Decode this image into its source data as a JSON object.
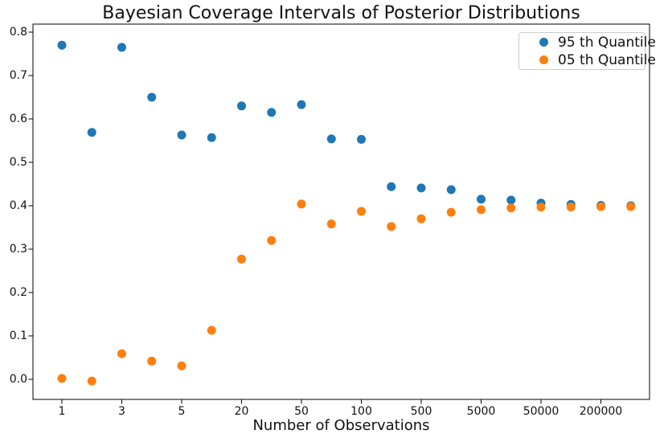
{
  "chart_data": {
    "type": "scatter",
    "title": "Bayesian Coverage Intervals of Posterior Distributions",
    "xlabel": "Number of Observations",
    "ylabel": "",
    "grid": false,
    "legend_position": "upper right",
    "n_points": 20,
    "x_tick_labels": [
      "1",
      "3",
      "5",
      "20",
      "50",
      "100",
      "500",
      "5000",
      "50000",
      "200000"
    ],
    "x_tick_point_indices": [
      0,
      2,
      4,
      6,
      8,
      10,
      12,
      14,
      16,
      18
    ],
    "y_tick_labels": [
      "0.0",
      "0.1",
      "0.2",
      "0.3",
      "0.4",
      "0.5",
      "0.6",
      "0.7",
      "0.8"
    ],
    "ylim": [
      -0.046,
      0.818
    ],
    "series": [
      {
        "name": "95 th Quantile",
        "color": "#1f77b4",
        "values": [
          0.77,
          0.569,
          0.765,
          0.65,
          0.563,
          0.557,
          0.63,
          0.615,
          0.633,
          0.554,
          0.553,
          0.444,
          0.441,
          0.437,
          0.415,
          0.413,
          0.406,
          0.403,
          0.401,
          0.4
        ]
      },
      {
        "name": "05 th Quantile",
        "color": "#ff7f0e",
        "values": [
          0.002,
          -0.004,
          0.059,
          0.042,
          0.031,
          0.113,
          0.277,
          0.32,
          0.404,
          0.358,
          0.387,
          0.352,
          0.37,
          0.385,
          0.391,
          0.395,
          0.397,
          0.397,
          0.398,
          0.398
        ]
      }
    ]
  },
  "colors": {
    "background": "#ffffff",
    "spine": "#000000",
    "tick_text": "#111111",
    "legend_border": "#cccccc"
  }
}
